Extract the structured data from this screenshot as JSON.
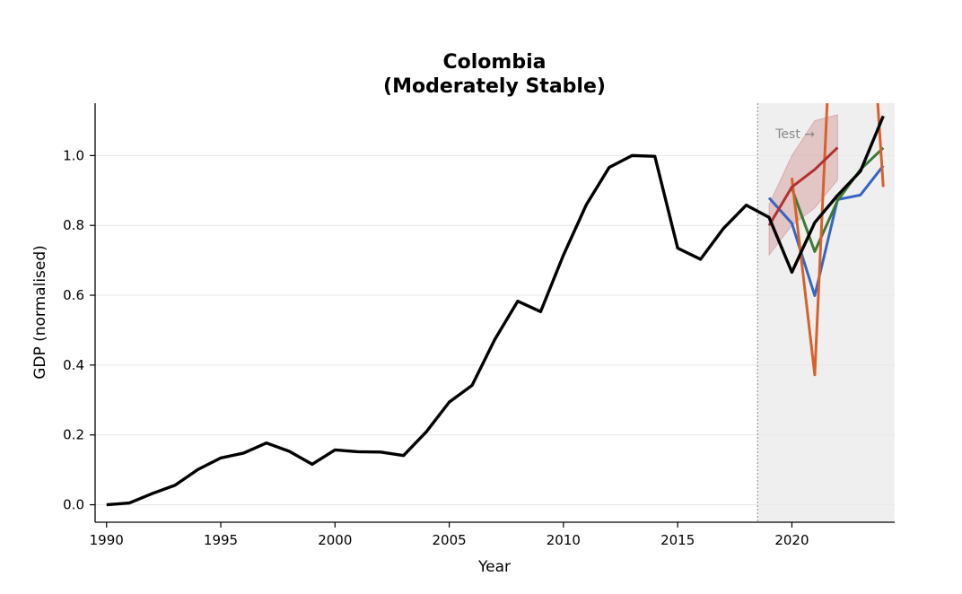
{
  "chart_data": {
    "type": "line",
    "title_line1": "Colombia",
    "title_line2": "(Moderately Stable)",
    "xlabel": "Year",
    "ylabel": "GDP (normalised)",
    "xlim": [
      1989.5,
      2024.5
    ],
    "ylim": [
      -0.05,
      1.15
    ],
    "x_ticks": [
      1990,
      1995,
      2000,
      2005,
      2010,
      2015,
      2020
    ],
    "y_ticks": [
      0.0,
      0.2,
      0.4,
      0.6,
      0.8,
      1.0
    ],
    "y_tick_labels": [
      "0.0",
      "0.2",
      "0.4",
      "0.6",
      "0.8",
      "1.0"
    ],
    "x_tick_labels": [
      "1990",
      "1995",
      "2000",
      "2005",
      "2010",
      "2015",
      "2020"
    ],
    "grid": "horizontal",
    "test_region_start": 2018.5,
    "annotation": "Test →",
    "series": [
      {
        "color": "#000000",
        "x": [
          1990,
          1991,
          1992,
          1993,
          1994,
          1995,
          1996,
          1997,
          1998,
          1999,
          2000,
          2001,
          2002,
          2003,
          2004,
          2005,
          2006,
          2007,
          2008,
          2009,
          2010,
          2011,
          2012,
          2013,
          2014,
          2015,
          2016,
          2017,
          2018,
          2019,
          2020,
          2021,
          2022,
          2023,
          2024
        ],
        "y": [
          0.0,
          0.005,
          0.032,
          0.056,
          0.101,
          0.134,
          0.148,
          0.177,
          0.153,
          0.116,
          0.157,
          0.152,
          0.151,
          0.141,
          0.209,
          0.294,
          0.342,
          0.474,
          0.583,
          0.553,
          0.715,
          0.859,
          0.966,
          1.0,
          0.998,
          0.735,
          0.703,
          0.791,
          0.858,
          0.823,
          0.666,
          0.808,
          0.886,
          0.955,
          1.113
        ]
      },
      {
        "color": "#3465c4",
        "x": [
          2019,
          2020,
          2021,
          2022,
          2023,
          2024
        ],
        "y": [
          0.879,
          0.806,
          0.599,
          0.874,
          0.887,
          0.971
        ]
      },
      {
        "color": "#3b7a34",
        "x": [
          2020,
          2021,
          2022,
          2023,
          2024
        ],
        "y": [
          0.906,
          0.725,
          0.871,
          0.96,
          1.022
        ]
      },
      {
        "color": "#d8612b",
        "x": [
          2020,
          2021,
          2022,
          2023,
          2024
        ],
        "y": [
          0.936,
          0.372,
          1.8,
          1.9,
          0.91
        ]
      },
      {
        "color": "#b43030",
        "x": [
          2019,
          2020,
          2021,
          2022
        ],
        "y": [
          0.8,
          0.91,
          0.96,
          1.023
        ]
      }
    ],
    "band": {
      "color": "#b43030",
      "x": [
        2019,
        2020,
        2021,
        2022
      ],
      "upper": [
        0.86,
        1.0,
        1.1,
        1.117
      ],
      "lower": [
        0.715,
        0.8,
        0.85,
        0.93
      ]
    }
  }
}
